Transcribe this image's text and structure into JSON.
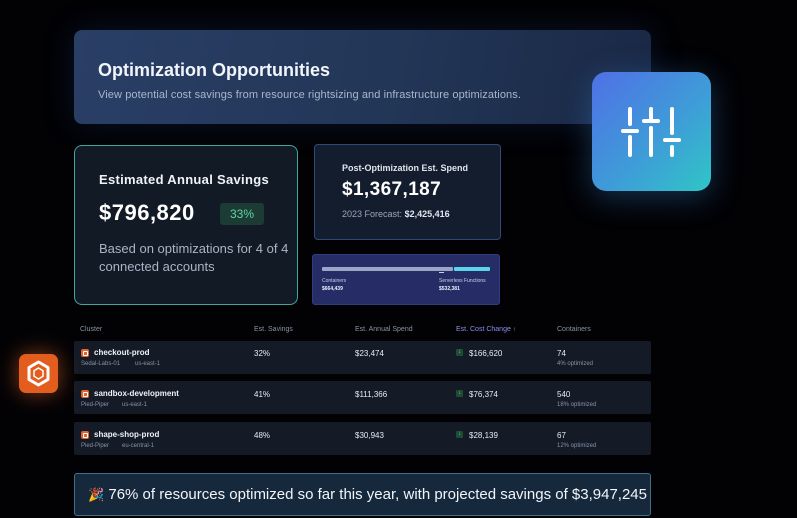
{
  "header": {
    "title": "Optimization Opportunities",
    "subtitle": "View potential cost savings from resource rightsizing and infrastructure optimizations."
  },
  "icons": {
    "tool": "sliders-icon",
    "provider": "hexagon-logo-icon",
    "row": "cluster-icon",
    "trend": "trend-down-icon",
    "banner": "party-popper-icon"
  },
  "colors": {
    "accent_teal": "#3fa89a",
    "savings_green": "#5fd4a3",
    "brand_orange": "#e35d1e",
    "serverless_cyan": "#5cd5ea"
  },
  "savings": {
    "title": "Estimated Annual Savings",
    "amount": "$796,820",
    "percent": "33%",
    "note": "Based on optimizations for 4 of 4 connected accounts"
  },
  "spend": {
    "title": "Post-Optimization Est. Spend",
    "amount": "$1,367,187",
    "forecast_label": "2023 Forecast:",
    "forecast_value": "$2,425,416"
  },
  "breakdown": {
    "containers_label": "Containers",
    "containers_value": "$664,439",
    "serverless_label": "Serverless Functions",
    "serverless_value": "$532,381"
  },
  "table": {
    "columns": [
      "Cluster",
      "Est. Savings",
      "Est. Annual Spend",
      "Est. Cost Change",
      "Containers"
    ],
    "rows": [
      {
        "name": "checkout-prod",
        "org": "Sedal-Labs-01",
        "region": "us-east-1",
        "savings": "32%",
        "spend": "$23,474",
        "change": "$166,620",
        "containers": "74",
        "optimized": "4% optimized"
      },
      {
        "name": "sandbox-development",
        "org": "Pied-Piper",
        "region": "us-east-1",
        "savings": "41%",
        "spend": "$111,366",
        "change": "$76,374",
        "containers": "540",
        "optimized": "18% optimized"
      },
      {
        "name": "shape-shop-prod",
        "org": "Pied-Piper",
        "region": "eu-central-1",
        "savings": "48%",
        "spend": "$30,943",
        "change": "$28,139",
        "containers": "67",
        "optimized": "12% optimized"
      }
    ]
  },
  "banner": {
    "emoji": "🎉",
    "text": "76% of resources optimized so far this year, with projected savings of $3,947,245"
  }
}
